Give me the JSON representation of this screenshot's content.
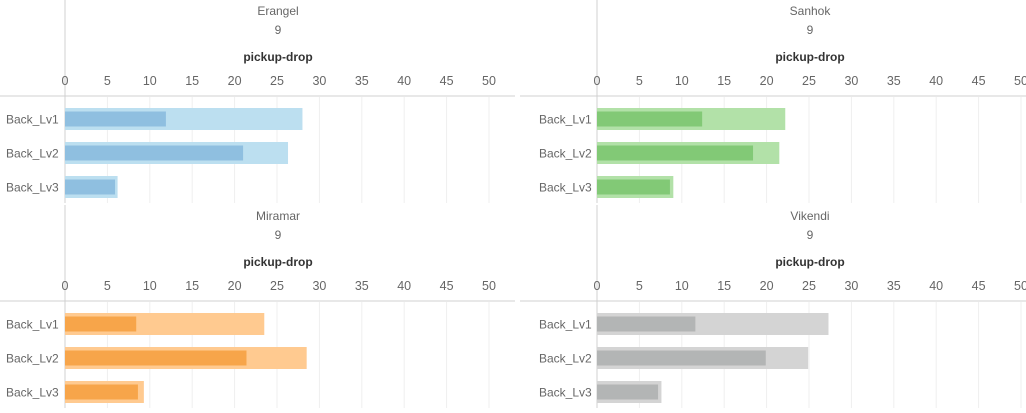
{
  "chart_data": [
    {
      "type": "bar",
      "panel_title": "Erangel",
      "panel_subtitle": "9",
      "axis_title": "pickup-drop",
      "xlim": [
        0,
        50
      ],
      "x_ticks": [
        "0",
        "5",
        "10",
        "15",
        "20",
        "25",
        "30",
        "35",
        "40",
        "45",
        "50"
      ],
      "categories": [
        "Back_Lv1",
        "Back_Lv2",
        "Back_Lv3"
      ],
      "series": [
        {
          "values": [
            28.0,
            26.3,
            6.2
          ]
        },
        {
          "values": [
            11.9,
            21.0,
            5.9
          ]
        }
      ],
      "colors": {
        "back": "#bcdff0",
        "front": "#8fbfe0"
      }
    },
    {
      "type": "bar",
      "panel_title": "Sanhok",
      "panel_subtitle": "9",
      "axis_title": "pickup-drop",
      "xlim": [
        0,
        50
      ],
      "x_ticks": [
        "0",
        "5",
        "10",
        "15",
        "20",
        "25",
        "30",
        "35",
        "40",
        "45",
        "50"
      ],
      "categories": [
        "Back_Lv1",
        "Back_Lv2",
        "Back_Lv3"
      ],
      "series": [
        {
          "values": [
            22.2,
            21.5,
            9.0
          ]
        },
        {
          "values": [
            12.4,
            18.4,
            8.6
          ]
        }
      ],
      "colors": {
        "back": "#b2e1a8",
        "front": "#82c976"
      }
    },
    {
      "type": "bar",
      "panel_title": "Miramar",
      "panel_subtitle": "9",
      "axis_title": "pickup-drop",
      "xlim": [
        0,
        50
      ],
      "x_ticks": [
        "0",
        "5",
        "10",
        "15",
        "20",
        "25",
        "30",
        "35",
        "40",
        "45",
        "50"
      ],
      "categories": [
        "Back_Lv1",
        "Back_Lv2",
        "Back_Lv3"
      ],
      "series": [
        {
          "values": [
            23.5,
            28.5,
            9.3
          ]
        },
        {
          "values": [
            8.4,
            21.4,
            8.6
          ]
        }
      ],
      "colors": {
        "back": "#ffca90",
        "front": "#f7a54a"
      }
    },
    {
      "type": "bar",
      "panel_title": "Vikendi",
      "panel_subtitle": "9",
      "axis_title": "pickup-drop",
      "xlim": [
        0,
        50
      ],
      "x_ticks": [
        "0",
        "5",
        "10",
        "15",
        "20",
        "25",
        "30",
        "35",
        "40",
        "45",
        "50"
      ],
      "categories": [
        "Back_Lv1",
        "Back_Lv2",
        "Back_Lv3"
      ],
      "series": [
        {
          "values": [
            27.3,
            24.9,
            7.6
          ]
        },
        {
          "values": [
            11.6,
            19.9,
            7.2
          ]
        }
      ],
      "colors": {
        "back": "#d4d4d4",
        "front": "#b3b5b5"
      }
    }
  ]
}
